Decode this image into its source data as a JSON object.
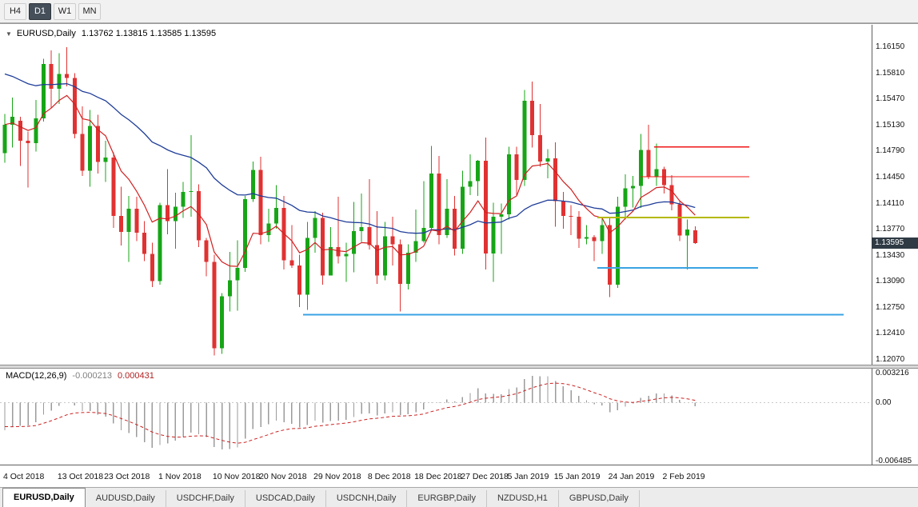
{
  "toolbar": {
    "timeframes": [
      {
        "label": "H4",
        "active": false
      },
      {
        "label": "D1",
        "active": true
      },
      {
        "label": "W1",
        "active": false
      },
      {
        "label": "MN",
        "active": false
      }
    ]
  },
  "chart_header": {
    "symbol": "EURUSD,Daily",
    "quote": "1.13762 1.13815 1.13585 1.13595"
  },
  "macd_header": {
    "label": "MACD(12,26,9)",
    "value": "-0.000213",
    "signal_value": "0.000431"
  },
  "price_axis": {
    "labels": [
      "1.16150",
      "1.15810",
      "1.15470",
      "1.15130",
      "1.14790",
      "1.14450",
      "1.14110",
      "1.13770",
      "1.13430",
      "1.13090",
      "1.12750",
      "1.12410",
      "1.12070"
    ],
    "current_price": "1.13595"
  },
  "macd_axis": {
    "labels": [
      "0.003216",
      "0.00",
      "-0.006485"
    ]
  },
  "date_axis": [
    {
      "label": "4 Oct 2018",
      "index": 0
    },
    {
      "label": "13 Oct 2018",
      "index": 7
    },
    {
      "label": "23 Oct 2018",
      "index": 13
    },
    {
      "label": "1 Nov 2018",
      "index": 20
    },
    {
      "label": "10 Nov 2018",
      "index": 27
    },
    {
      "label": "20 Nov 2018",
      "index": 33
    },
    {
      "label": "29 Nov 2018",
      "index": 40
    },
    {
      "label": "8 Dec 2018",
      "index": 47
    },
    {
      "label": "18 Dec 2018",
      "index": 53
    },
    {
      "label": "27 Dec 2018",
      "index": 59
    },
    {
      "label": "5 Jan 2019",
      "index": 65
    },
    {
      "label": "15 Jan 2019",
      "index": 71
    },
    {
      "label": "24 Jan 2019",
      "index": 78
    },
    {
      "label": "2 Feb 2019",
      "index": 85
    }
  ],
  "tabs": [
    {
      "label": "EURUSD,Daily",
      "active": true
    },
    {
      "label": "AUDUSD,Daily",
      "active": false
    },
    {
      "label": "USDCHF,Daily",
      "active": false
    },
    {
      "label": "USDCAD,Daily",
      "active": false
    },
    {
      "label": "USDCNH,Daily",
      "active": false
    },
    {
      "label": "EURGBP,Daily",
      "active": false
    },
    {
      "label": "NZDUSD,H1",
      "active": false
    },
    {
      "label": "GBPUSD,Daily",
      "active": false
    }
  ],
  "colors": {
    "up": "#17a517",
    "down": "#e03232",
    "ma_slow": "#1f3d99",
    "ma_fast": "#d02020",
    "macd_bar": "#9b9b9b",
    "macd_signal": "#cc2222",
    "badge_bg": "#2e3a44"
  },
  "chart_data": {
    "type": "candlestick",
    "symbol": "EURUSD",
    "timeframe": "Daily",
    "ylim": [
      1.1207,
      1.1615
    ],
    "indicator": {
      "type": "macd",
      "label": "MACD(12,26,9)",
      "ylim": [
        -0.006485,
        0.003216
      ]
    },
    "lines": [
      {
        "price": 1.1485,
        "color": "#f01515",
        "x1": 0.75,
        "x2": 0.86,
        "width": 1.4
      },
      {
        "price": 1.1446,
        "color": "#f01515",
        "x1": 0.735,
        "x2": 0.86,
        "width": 1.4
      },
      {
        "price": 1.1393,
        "color": "#b5b800",
        "x1": 0.685,
        "x2": 0.86,
        "width": 2
      },
      {
        "price": 1.1327,
        "color": "#3aa3e3",
        "x1": 0.685,
        "x2": 0.87,
        "width": 2
      },
      {
        "price": 1.1266,
        "color": "#3aa3e3",
        "x1": 0.348,
        "x2": 0.968,
        "width": 2
      }
    ],
    "candles": [
      [
        "2018-10-04",
        1.1477,
        1.1528,
        1.1464,
        1.1514
      ],
      [
        "2018-10-05",
        1.1514,
        1.1549,
        1.1484,
        1.1524
      ],
      [
        "2018-10-08",
        1.1519,
        1.1524,
        1.146,
        1.1493
      ],
      [
        "2018-10-09",
        1.1493,
        1.1505,
        1.1432,
        1.149
      ],
      [
        "2018-10-10",
        1.149,
        1.1546,
        1.1479,
        1.1522
      ],
      [
        "2018-10-11",
        1.1522,
        1.16,
        1.1518,
        1.1593
      ],
      [
        "2018-10-12",
        1.1593,
        1.1611,
        1.1535,
        1.1561
      ],
      [
        "2018-10-15",
        1.1561,
        1.1607,
        1.1541,
        1.158
      ],
      [
        "2018-10-16",
        1.158,
        1.1615,
        1.1564,
        1.1575
      ],
      [
        "2018-10-17",
        1.1575,
        1.1581,
        1.1496,
        1.1502
      ],
      [
        "2018-10-18",
        1.1502,
        1.1538,
        1.1447,
        1.1454
      ],
      [
        "2018-10-19",
        1.1454,
        1.1533,
        1.1433,
        1.1512
      ],
      [
        "2018-10-22",
        1.1512,
        1.1527,
        1.145,
        1.1465
      ],
      [
        "2018-10-23",
        1.1465,
        1.1493,
        1.1439,
        1.1471
      ],
      [
        "2018-10-24",
        1.1471,
        1.1478,
        1.1379,
        1.1395
      ],
      [
        "2018-10-25",
        1.1395,
        1.1433,
        1.1356,
        1.1374
      ],
      [
        "2018-10-26",
        1.1374,
        1.1421,
        1.1335,
        1.1404
      ],
      [
        "2018-10-29",
        1.1404,
        1.142,
        1.1362,
        1.1373
      ],
      [
        "2018-10-30",
        1.1373,
        1.1388,
        1.1336,
        1.1345
      ],
      [
        "2018-10-31",
        1.1345,
        1.136,
        1.1302,
        1.131
      ],
      [
        "2018-11-01",
        1.131,
        1.1412,
        1.1305,
        1.1409
      ],
      [
        "2018-11-02",
        1.1409,
        1.1456,
        1.1371,
        1.1388
      ],
      [
        "2018-11-05",
        1.1388,
        1.1425,
        1.1352,
        1.1407
      ],
      [
        "2018-11-06",
        1.1407,
        1.1439,
        1.1392,
        1.1426
      ],
      [
        "2018-11-07",
        1.1426,
        1.15,
        1.1394,
        1.1427
      ],
      [
        "2018-11-08",
        1.1427,
        1.1436,
        1.1354,
        1.1363
      ],
      [
        "2018-11-09",
        1.1363,
        1.1366,
        1.1316,
        1.1335
      ],
      [
        "2018-11-12",
        1.1335,
        1.1344,
        1.1213,
        1.1222
      ],
      [
        "2018-11-13",
        1.1222,
        1.1294,
        1.1215,
        1.129
      ],
      [
        "2018-11-14",
        1.129,
        1.1348,
        1.127,
        1.1311
      ],
      [
        "2018-11-15",
        1.1311,
        1.1363,
        1.1271,
        1.1327
      ],
      [
        "2018-11-16",
        1.1327,
        1.1421,
        1.1322,
        1.1417
      ],
      [
        "2018-11-19",
        1.1417,
        1.1466,
        1.1413,
        1.1455
      ],
      [
        "2018-11-20",
        1.1455,
        1.1472,
        1.1358,
        1.137
      ],
      [
        "2018-11-21",
        1.137,
        1.1404,
        1.1361,
        1.1385
      ],
      [
        "2018-11-22",
        1.1385,
        1.1435,
        1.1378,
        1.1405
      ],
      [
        "2018-11-23",
        1.1405,
        1.1421,
        1.1325,
        1.1337
      ],
      [
        "2018-11-26",
        1.1337,
        1.1383,
        1.1327,
        1.133
      ],
      [
        "2018-11-27",
        1.133,
        1.1344,
        1.1276,
        1.1292
      ],
      [
        "2018-11-28",
        1.1292,
        1.1387,
        1.1272,
        1.1366
      ],
      [
        "2018-11-29",
        1.1366,
        1.1401,
        1.1347,
        1.1392
      ],
      [
        "2018-11-30",
        1.1392,
        1.1399,
        1.1305,
        1.1317
      ],
      [
        "2018-12-03",
        1.1317,
        1.138,
        1.1317,
        1.1354
      ],
      [
        "2018-12-04",
        1.1354,
        1.142,
        1.1333,
        1.1342
      ],
      [
        "2018-12-05",
        1.1342,
        1.136,
        1.1309,
        1.1345
      ],
      [
        "2018-12-06",
        1.1345,
        1.1413,
        1.1321,
        1.1375
      ],
      [
        "2018-12-07",
        1.1375,
        1.1424,
        1.1361,
        1.138
      ],
      [
        "2018-12-10",
        1.138,
        1.1443,
        1.1351,
        1.1357
      ],
      [
        "2018-12-11",
        1.1357,
        1.1401,
        1.1306,
        1.1317
      ],
      [
        "2018-12-12",
        1.1317,
        1.1387,
        1.1311,
        1.1368
      ],
      [
        "2018-12-13",
        1.1368,
        1.1394,
        1.133,
        1.1358
      ],
      [
        "2018-12-14",
        1.1358,
        1.1364,
        1.127,
        1.1306
      ],
      [
        "2018-12-17",
        1.1306,
        1.1358,
        1.1299,
        1.1347
      ],
      [
        "2018-12-18",
        1.1347,
        1.1403,
        1.1335,
        1.1362
      ],
      [
        "2018-12-19",
        1.1362,
        1.144,
        1.136,
        1.1379
      ],
      [
        "2018-12-20",
        1.1379,
        1.1486,
        1.1375,
        1.145
      ],
      [
        "2018-12-21",
        1.145,
        1.1473,
        1.1358,
        1.137
      ],
      [
        "2018-12-24",
        1.137,
        1.1443,
        1.1366,
        1.1404
      ],
      [
        "2018-12-26",
        1.1404,
        1.1421,
        1.1343,
        1.1352
      ],
      [
        "2018-12-27",
        1.1352,
        1.1454,
        1.1345,
        1.1433
      ],
      [
        "2018-12-28",
        1.1433,
        1.1475,
        1.1422,
        1.144
      ],
      [
        "2018-12-31",
        1.144,
        1.1468,
        1.1421,
        1.1467
      ],
      [
        "2019-01-02",
        1.1467,
        1.1497,
        1.1325,
        1.1346
      ],
      [
        "2019-01-03",
        1.1346,
        1.1412,
        1.1309,
        1.1394
      ],
      [
        "2019-01-04",
        1.1394,
        1.1411,
        1.1345,
        1.1397
      ],
      [
        "2019-01-07",
        1.1397,
        1.1485,
        1.139,
        1.1475
      ],
      [
        "2019-01-08",
        1.1475,
        1.1485,
        1.1422,
        1.1442
      ],
      [
        "2019-01-09",
        1.1442,
        1.1559,
        1.1434,
        1.1545
      ],
      [
        "2019-01-10",
        1.1545,
        1.157,
        1.1484,
        1.15
      ],
      [
        "2019-01-11",
        1.15,
        1.1541,
        1.1459,
        1.1466
      ],
      [
        "2019-01-14",
        1.1466,
        1.1482,
        1.1444,
        1.147
      ],
      [
        "2019-01-15",
        1.147,
        1.1491,
        1.1381,
        1.1414
      ],
      [
        "2019-01-16",
        1.1414,
        1.1426,
        1.1378,
        1.1395
      ],
      [
        "2019-01-17",
        1.1395,
        1.1409,
        1.137,
        1.1394
      ],
      [
        "2019-01-18",
        1.1394,
        1.1401,
        1.1353,
        1.1365
      ],
      [
        "2019-01-21",
        1.1365,
        1.1383,
        1.1358,
        1.1367
      ],
      [
        "2019-01-22",
        1.1367,
        1.137,
        1.1336,
        1.1362
      ],
      [
        "2019-01-23",
        1.1362,
        1.1394,
        1.1345,
        1.1383
      ],
      [
        "2019-01-24",
        1.1383,
        1.1392,
        1.1289,
        1.1305
      ],
      [
        "2019-01-25",
        1.1305,
        1.142,
        1.1301,
        1.1407
      ],
      [
        "2019-01-28",
        1.1407,
        1.1449,
        1.139,
        1.1431
      ],
      [
        "2019-01-29",
        1.1431,
        1.1447,
        1.1406,
        1.1434
      ],
      [
        "2019-01-30",
        1.1434,
        1.1502,
        1.1405,
        1.1481
      ],
      [
        "2019-01-31",
        1.1481,
        1.1514,
        1.1443,
        1.1446
      ],
      [
        "2019-02-01",
        1.1446,
        1.1489,
        1.1434,
        1.1456
      ],
      [
        "2019-02-04",
        1.1456,
        1.1459,
        1.1424,
        1.1435
      ],
      [
        "2019-02-05",
        1.1435,
        1.1448,
        1.1402,
        1.141
      ],
      [
        "2019-02-06",
        1.141,
        1.1415,
        1.1362,
        1.1369
      ],
      [
        "2019-02-07",
        1.1369,
        1.139,
        1.1325,
        1.1377
      ],
      [
        "2019-02-08",
        1.13762,
        1.13815,
        1.13585,
        1.13595
      ]
    ]
  }
}
